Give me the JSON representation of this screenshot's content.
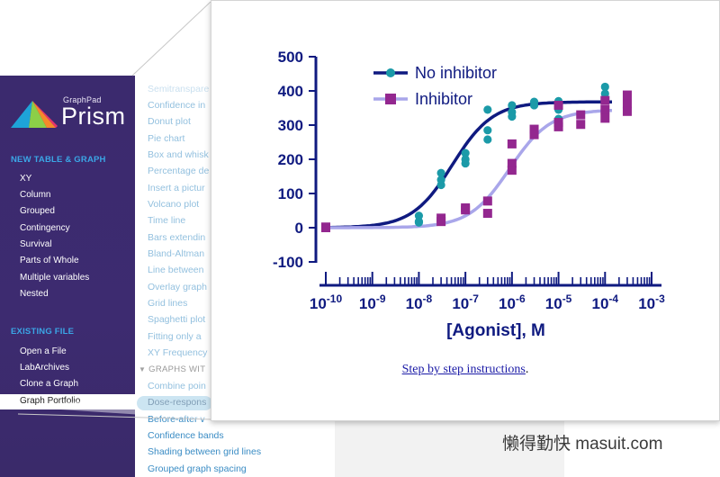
{
  "app": {
    "brand_small": "GraphPad",
    "brand_large": "Prism",
    "logo_icon": "prism-logo-icon"
  },
  "sidebar": {
    "new_section": "NEW TABLE & GRAPH",
    "new_items": [
      "XY",
      "Column",
      "Grouped",
      "Contingency",
      "Survival",
      "Parts of Whole",
      "Multiple variables",
      "Nested"
    ],
    "existing_section": "EXISTING FILE",
    "existing_items": [
      "Open a File",
      "LabArchives",
      "Clone a Graph",
      "Graph Portfolio"
    ],
    "selected": "Graph Portfolio"
  },
  "gallery": {
    "items_top": [
      "Semitranspare",
      "Confidence in",
      "Donut plot",
      "Pie chart",
      "Box and whisk",
      "Percentage de",
      "Insert a pictur",
      "Volcano plot",
      "Time line",
      "Bars extendin",
      "Bland-Altman",
      "Line between",
      "Overlay graph",
      "Grid lines",
      "Spaghetti plot",
      "Fitting only a",
      "XY Frequency"
    ],
    "section_label": "GRAPHS WIT",
    "items_bottom": [
      "Combine poin",
      "Dose-respons",
      "Before-after v",
      "Confidence bands",
      "Shading between grid lines",
      "Grouped graph spacing"
    ],
    "selected": "Dose-respons"
  },
  "chart_data": {
    "type": "scatter",
    "title": "",
    "xlabel": "[Agonist], M",
    "ylabel": "",
    "xscale": "log10",
    "xlim_exponent": [
      -10,
      -3
    ],
    "x_tick_exponents": [
      -10,
      -9,
      -8,
      -7,
      -6,
      -5,
      -4,
      -3
    ],
    "ylim": [
      -100,
      500
    ],
    "y_ticks": [
      -100,
      0,
      100,
      200,
      300,
      400,
      500
    ],
    "grid": false,
    "legend_position": "top-left",
    "series": [
      {
        "name": "No inhibitor",
        "color": "#0f1a80",
        "marker": "circle",
        "marker_color": "#1b9aa8",
        "points": [
          [
            1e-10,
            2
          ],
          [
            1e-10,
            0
          ],
          [
            1e-08,
            35
          ],
          [
            1e-08,
            18
          ],
          [
            1e-08,
            15
          ],
          [
            3e-08,
            160
          ],
          [
            3e-08,
            140
          ],
          [
            3e-08,
            125
          ],
          [
            1e-07,
            218
          ],
          [
            1e-07,
            200
          ],
          [
            1e-07,
            188
          ],
          [
            3e-07,
            345
          ],
          [
            3e-07,
            285
          ],
          [
            3e-07,
            258
          ],
          [
            1e-06,
            358
          ],
          [
            1e-06,
            338
          ],
          [
            1e-06,
            325
          ],
          [
            3e-06,
            368
          ],
          [
            3e-06,
            358
          ],
          [
            1e-05,
            370
          ],
          [
            1e-05,
            345
          ],
          [
            1e-05,
            318
          ],
          [
            0.0001,
            412
          ],
          [
            0.0001,
            392
          ],
          [
            0.0001,
            375
          ]
        ],
        "fit": {
          "bottom": 0,
          "top": 368,
          "logEC50": -7.28,
          "hill": 1
        }
      },
      {
        "name": "Inhibitor",
        "color": "#a9a6ea",
        "marker": "square",
        "marker_color": "#93278f",
        "points": [
          [
            1e-10,
            2
          ],
          [
            1e-10,
            0
          ],
          [
            3e-08,
            28
          ],
          [
            3e-08,
            18
          ],
          [
            1e-07,
            58
          ],
          [
            1e-07,
            52
          ],
          [
            3e-07,
            78
          ],
          [
            3e-07,
            42
          ],
          [
            1e-06,
            245
          ],
          [
            1e-06,
            188
          ],
          [
            1e-06,
            168
          ],
          [
            3e-06,
            288
          ],
          [
            3e-06,
            272
          ],
          [
            1e-05,
            358
          ],
          [
            1e-05,
            308
          ],
          [
            1e-05,
            295
          ],
          [
            3e-05,
            330
          ],
          [
            3e-05,
            302
          ],
          [
            0.0001,
            372
          ],
          [
            0.0001,
            345
          ],
          [
            0.0001,
            320
          ],
          [
            0.0003,
            388
          ],
          [
            0.0003,
            362
          ],
          [
            0.0003,
            340
          ]
        ],
        "fit": {
          "bottom": 0,
          "top": 345,
          "logEC50": -6.05,
          "hill": 1
        }
      }
    ]
  },
  "instructions": {
    "link_text": "Step by step instructions",
    "suffix": "."
  },
  "watermark": "懒得勤快 masuit.com"
}
